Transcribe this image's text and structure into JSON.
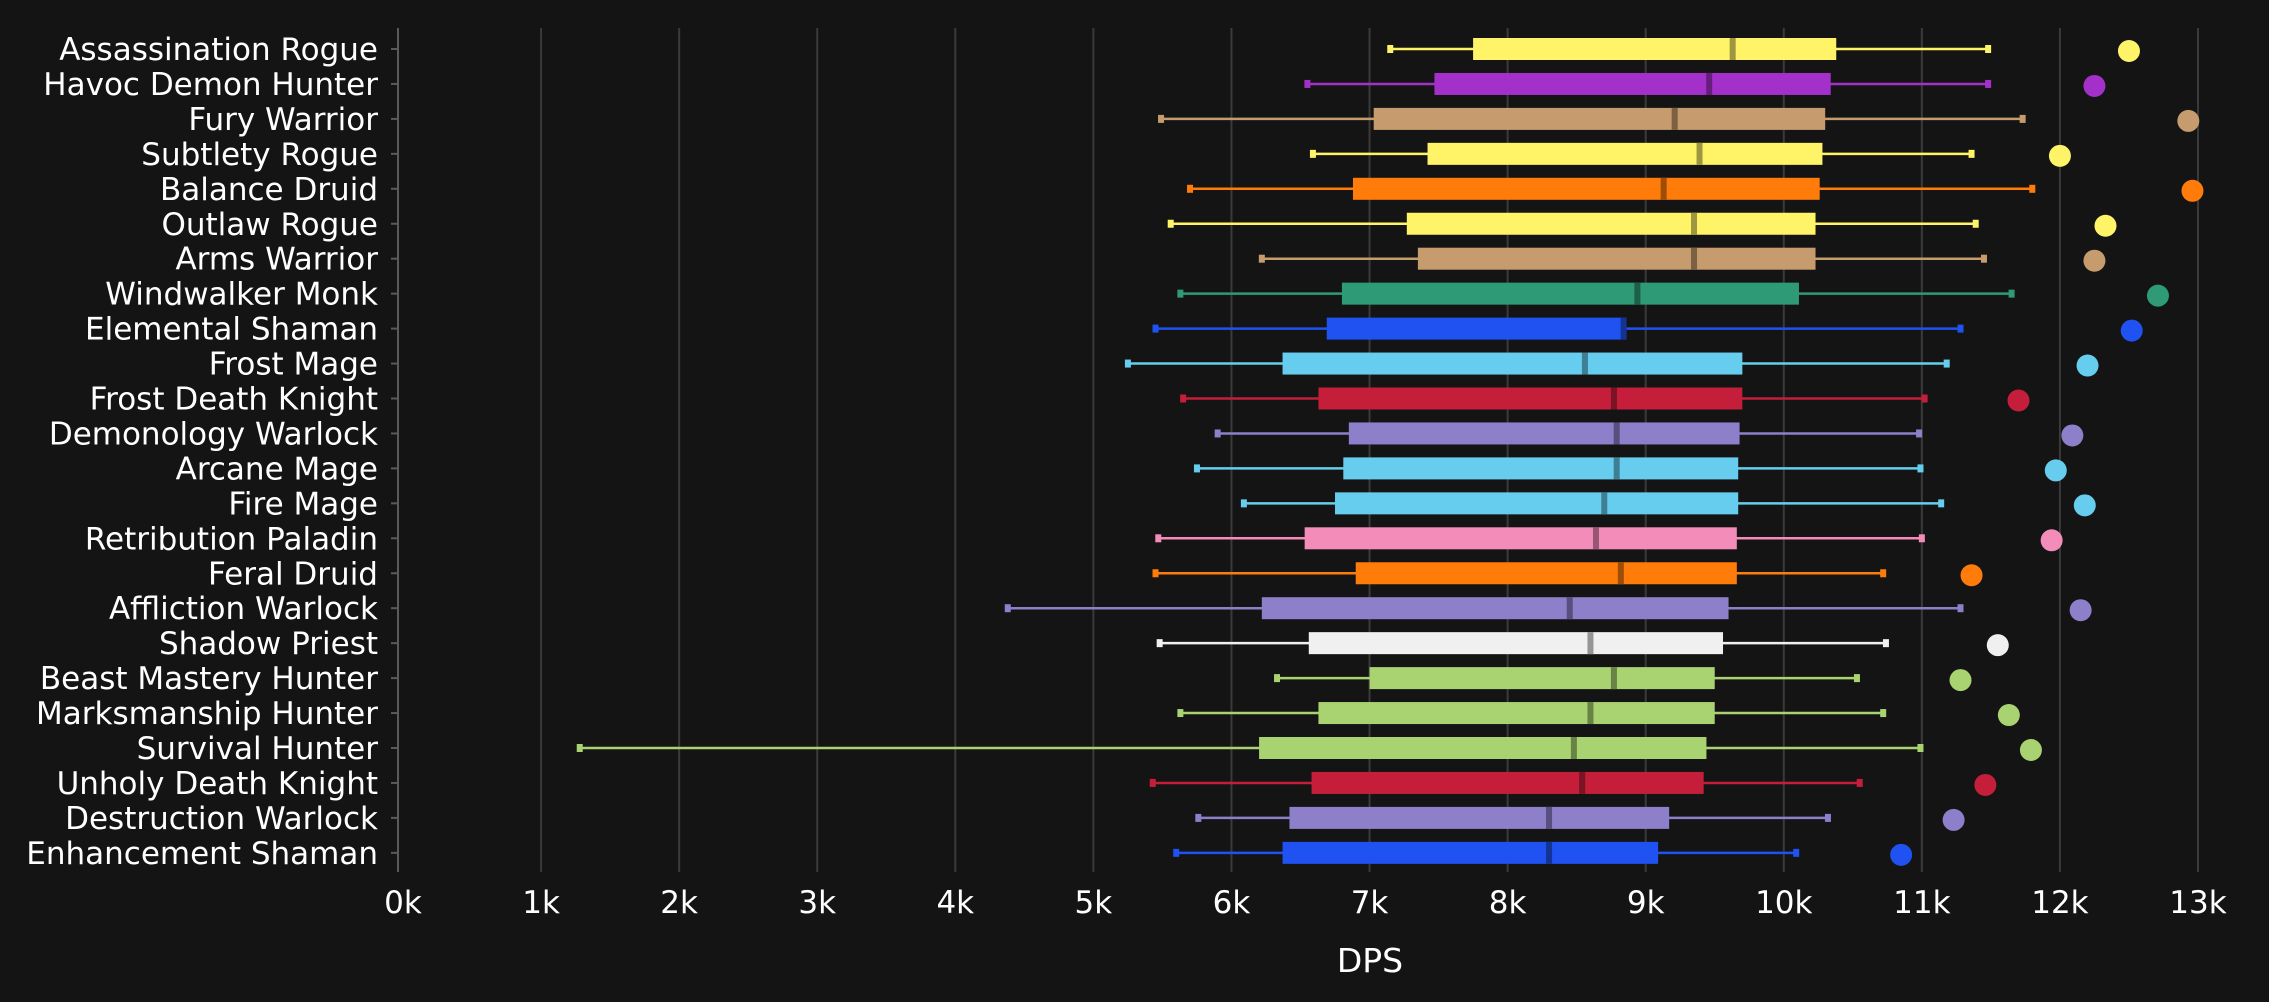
{
  "chart_data": {
    "type": "box",
    "orientation": "horizontal",
    "xlabel": "DPS",
    "xlim": [
      0,
      13000
    ],
    "xticks": [
      0,
      1000,
      2000,
      3000,
      4000,
      5000,
      6000,
      7000,
      8000,
      9000,
      10000,
      11000,
      12000,
      13000
    ],
    "xtick_labels": [
      "0k",
      "1k",
      "2k",
      "3k",
      "4k",
      "5k",
      "6k",
      "7k",
      "8k",
      "9k",
      "10k",
      "11k",
      "12k",
      "13k"
    ],
    "grid": "vertical",
    "background": "#141414",
    "series": [
      {
        "name": "Assassination Rogue",
        "color": "#FFF468",
        "min": 7150,
        "q1": 7750,
        "median": 9630,
        "q3": 10380,
        "max": 11480,
        "outlier": 12500
      },
      {
        "name": "Havoc Demon Hunter",
        "color": "#A330C9",
        "min": 6550,
        "q1": 7470,
        "median": 9460,
        "q3": 10340,
        "max": 11480,
        "outlier": 12250
      },
      {
        "name": "Fury Warrior",
        "color": "#C69B6D",
        "min": 5490,
        "q1": 7030,
        "median": 9210,
        "q3": 10300,
        "max": 11730,
        "outlier": 12930
      },
      {
        "name": "Subtlety Rogue",
        "color": "#FFF468",
        "min": 6590,
        "q1": 7420,
        "median": 9390,
        "q3": 10280,
        "max": 11360,
        "outlier": 12000
      },
      {
        "name": "Balance Druid",
        "color": "#FF7C0A",
        "min": 5700,
        "q1": 6880,
        "median": 9130,
        "q3": 10260,
        "max": 11800,
        "outlier": 12960
      },
      {
        "name": "Outlaw Rogue",
        "color": "#FFF468",
        "min": 5560,
        "q1": 7270,
        "median": 9350,
        "q3": 10230,
        "max": 11390,
        "outlier": 12330
      },
      {
        "name": "Arms Warrior",
        "color": "#C69B6D",
        "min": 6220,
        "q1": 7350,
        "median": 9350,
        "q3": 10230,
        "max": 11450,
        "outlier": 12250
      },
      {
        "name": "Windwalker Monk",
        "color": "#2E9A76",
        "min": 5630,
        "q1": 6800,
        "median": 8940,
        "q3": 10110,
        "max": 11650,
        "outlier": 12710
      },
      {
        "name": "Elemental Shaman",
        "color": "#1F52F0",
        "min": 5450,
        "q1": 6690,
        "median": 8840,
        "q3": 8860,
        "max": 11280,
        "outlier": 12520
      },
      {
        "name": "Frost Mage",
        "color": "#66CDEE",
        "min": 5250,
        "q1": 6370,
        "median": 8560,
        "q3": 9700,
        "max": 11180,
        "outlier": 12200
      },
      {
        "name": "Frost Death Knight",
        "color": "#C41E3A",
        "min": 5650,
        "q1": 6630,
        "median": 8770,
        "q3": 9700,
        "max": 11020,
        "outlier": 11700
      },
      {
        "name": "Demonology Warlock",
        "color": "#8D7FC9",
        "min": 5900,
        "q1": 6850,
        "median": 8790,
        "q3": 9680,
        "max": 10980,
        "outlier": 12090
      },
      {
        "name": "Arcane Mage",
        "color": "#66CDEE",
        "min": 5750,
        "q1": 6810,
        "median": 8790,
        "q3": 9670,
        "max": 10990,
        "outlier": 11970
      },
      {
        "name": "Fire Mage",
        "color": "#66CDEE",
        "min": 6090,
        "q1": 6750,
        "median": 8700,
        "q3": 9670,
        "max": 11140,
        "outlier": 12180
      },
      {
        "name": "Retribution Paladin",
        "color": "#F48CBA",
        "min": 5470,
        "q1": 6530,
        "median": 8640,
        "q3": 9660,
        "max": 11000,
        "outlier": 11940
      },
      {
        "name": "Feral Druid",
        "color": "#FF7C0A",
        "min": 5450,
        "q1": 6900,
        "median": 8820,
        "q3": 9660,
        "max": 10720,
        "outlier": 11360
      },
      {
        "name": "Affliction Warlock",
        "color": "#8D7FC9",
        "min": 4380,
        "q1": 6220,
        "median": 8450,
        "q3": 9600,
        "max": 11280,
        "outlier": 12150
      },
      {
        "name": "Shadow Priest",
        "color": "#F0F0F0",
        "min": 5480,
        "q1": 6560,
        "median": 8600,
        "q3": 9560,
        "max": 10740,
        "outlier": 11550
      },
      {
        "name": "Beast Mastery Hunter",
        "color": "#A9D271",
        "min": 6330,
        "q1": 7000,
        "median": 8770,
        "q3": 9500,
        "max": 10530,
        "outlier": 11280
      },
      {
        "name": "Marksmanship Hunter",
        "color": "#A9D271",
        "min": 5630,
        "q1": 6630,
        "median": 8600,
        "q3": 9500,
        "max": 10720,
        "outlier": 11630
      },
      {
        "name": "Survival Hunter",
        "color": "#A9D271",
        "min": 1280,
        "q1": 6200,
        "median": 8480,
        "q3": 9440,
        "max": 10990,
        "outlier": 11790
      },
      {
        "name": "Unholy Death Knight",
        "color": "#C41E3A",
        "min": 5430,
        "q1": 6580,
        "median": 8540,
        "q3": 9420,
        "max": 10550,
        "outlier": 11460
      },
      {
        "name": "Destruction Warlock",
        "color": "#8D7FC9",
        "min": 5760,
        "q1": 6420,
        "median": 8300,
        "q3": 9170,
        "max": 10320,
        "outlier": 11230
      },
      {
        "name": "Enhancement Shaman",
        "color": "#1F52F0",
        "min": 5600,
        "q1": 6370,
        "median": 8300,
        "q3": 9090,
        "max": 10090,
        "outlier": 10850
      }
    ]
  }
}
